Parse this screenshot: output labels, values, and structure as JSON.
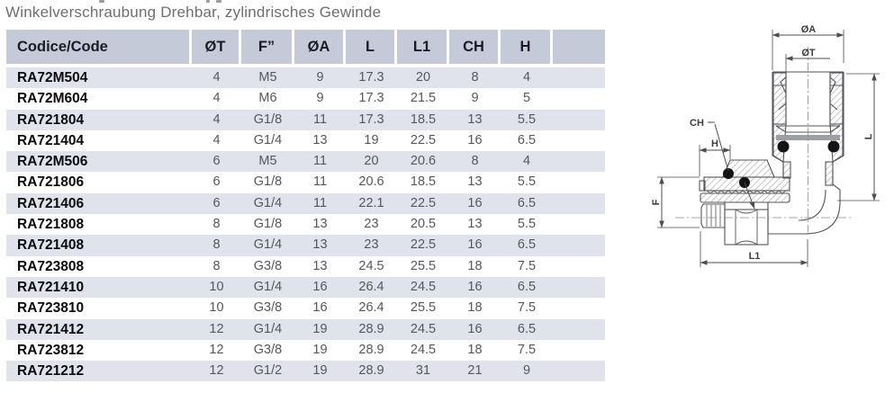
{
  "page_title": "Winkelverschraubung Drehbar, zylindrisches Gewinde",
  "table": {
    "columns": [
      "Codice/Code",
      "ØT",
      "F”",
      "ØA",
      "L",
      "L1",
      "CH",
      "H",
      ""
    ],
    "rows": [
      [
        "RA72M504",
        "4",
        "M5",
        "9",
        "17.3",
        "20",
        "8",
        "4"
      ],
      [
        "RA72M604",
        "4",
        "M6",
        "9",
        "17.3",
        "21.5",
        "9",
        "5"
      ],
      [
        "RA721804",
        "4",
        "G1/8",
        "11",
        "17.3",
        "18.5",
        "13",
        "5.5"
      ],
      [
        "RA721404",
        "4",
        "G1/4",
        "13",
        "19",
        "22.5",
        "16",
        "6.5"
      ],
      [
        "RA72M506",
        "6",
        "M5",
        "11",
        "20",
        "20.6",
        "8",
        "4"
      ],
      [
        "RA721806",
        "6",
        "G1/8",
        "11",
        "20.6",
        "18.5",
        "13",
        "5.5"
      ],
      [
        "RA721406",
        "6",
        "G1/4",
        "11",
        "22.1",
        "22.5",
        "16",
        "6.5"
      ],
      [
        "RA721808",
        "8",
        "G1/8",
        "13",
        "23",
        "20.5",
        "13",
        "5.5"
      ],
      [
        "RA721408",
        "8",
        "G1/4",
        "13",
        "23",
        "22.5",
        "16",
        "6.5"
      ],
      [
        "RA723808",
        "8",
        "G3/8",
        "13",
        "24.5",
        "25.5",
        "18",
        "7.5"
      ],
      [
        "RA721410",
        "10",
        "G1/4",
        "16",
        "26.4",
        "24.5",
        "16",
        "6.5"
      ],
      [
        "RA723810",
        "10",
        "G3/8",
        "16",
        "26.4",
        "25.5",
        "18",
        "7.5"
      ],
      [
        "RA721412",
        "12",
        "G1/4",
        "19",
        "28.9",
        "24.5",
        "16",
        "6.5"
      ],
      [
        "RA723812",
        "12",
        "G3/8",
        "19",
        "28.9",
        "24.5",
        "18",
        "7.5"
      ],
      [
        "RA721212",
        "12",
        "G1/2",
        "19",
        "28.9",
        "31",
        "21",
        "9"
      ]
    ]
  },
  "drawing": {
    "labels": {
      "oa": "ØA",
      "ot": "ØT",
      "l": "L",
      "ch": "CH",
      "h": "H",
      "f": "F",
      "l1": "L1"
    }
  },
  "colors": {
    "header_bg": "#c5cad9",
    "stripe_bg": "#e0e3ec",
    "title_text": "#6d6e71",
    "value_text": "#57565e",
    "code_text": "#0b0b0d",
    "drawing_line": "#55555a"
  }
}
